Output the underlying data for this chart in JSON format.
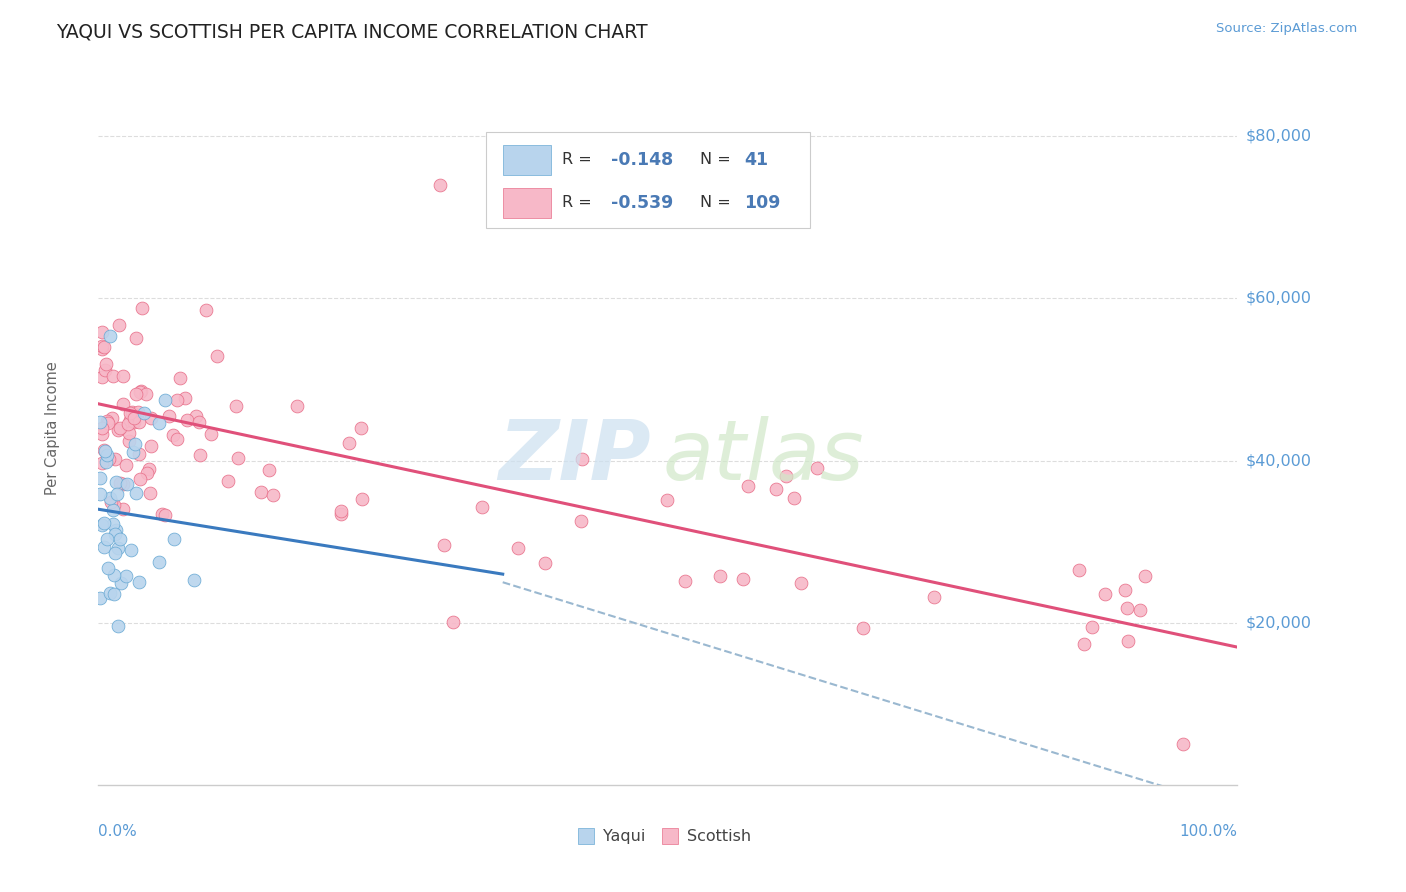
{
  "title": "YAQUI VS SCOTTISH PER CAPITA INCOME CORRELATION CHART",
  "source_text": "Source: ZipAtlas.com",
  "ylabel": "Per Capita Income",
  "yaxis_labels": [
    "$20,000",
    "$40,000",
    "$60,000",
    "$80,000"
  ],
  "yaxis_values": [
    20000,
    40000,
    60000,
    80000
  ],
  "ylim": [
    0,
    88000
  ],
  "xlim": [
    0,
    1.0
  ],
  "yaqui_R": -0.148,
  "yaqui_N": 41,
  "scottish_R": -0.539,
  "scottish_N": 109,
  "yaqui_color": "#b8d4ed",
  "yaqui_edge_color": "#6aaad4",
  "yaqui_line_color": "#3a7abf",
  "scottish_color": "#f7b8c8",
  "scottish_edge_color": "#e8708a",
  "scottish_line_color": "#e0507a",
  "dashed_color": "#9ab8d0",
  "background_color": "#ffffff",
  "grid_color": "#dddddd",
  "ylabel_color": "#666666",
  "title_color": "#222222",
  "source_color": "#5b9bd5",
  "yaxis_color": "#5b9bd5",
  "legend_edge_color": "#cccccc",
  "legend_value_color": "#4a7ab5",
  "watermark_zip_color": "#cce0f0",
  "watermark_atlas_color": "#d0e8c8"
}
